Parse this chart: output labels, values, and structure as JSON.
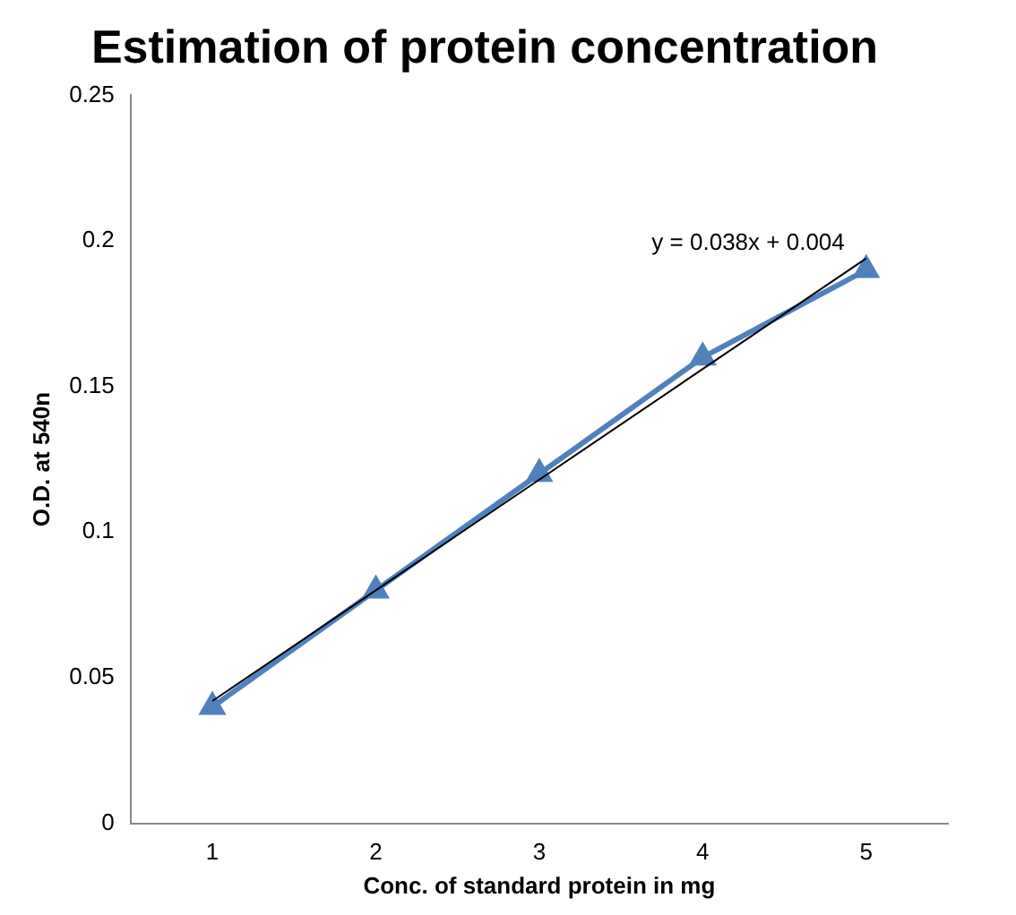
{
  "chart_data": {
    "type": "line",
    "title": "Estimation of protein concentration",
    "xlabel": "Conc. of standard protein in mg",
    "ylabel": "O.D. at 540n",
    "categories": [
      "1",
      "2",
      "3",
      "4",
      "5"
    ],
    "series": [
      {
        "type": "line",
        "color": "#000000",
        "values": [
          0.042,
          0.08,
          0.118,
          0.156,
          0.194
        ],
        "marker": "none"
      },
      {
        "type": "line",
        "color": "#4f81bd",
        "values": [
          0.04,
          0.08,
          0.12,
          0.16,
          0.19
        ],
        "marker": "triangle"
      }
    ],
    "ylim": [
      0,
      0.25
    ],
    "yticks": [
      0,
      0.05,
      0.1,
      0.15,
      0.2,
      0.25
    ],
    "grid": false,
    "legend": false,
    "annotations": [
      {
        "text": "y = 0.038x + 0.004",
        "x": "5",
        "y": 0.194
      }
    ]
  }
}
